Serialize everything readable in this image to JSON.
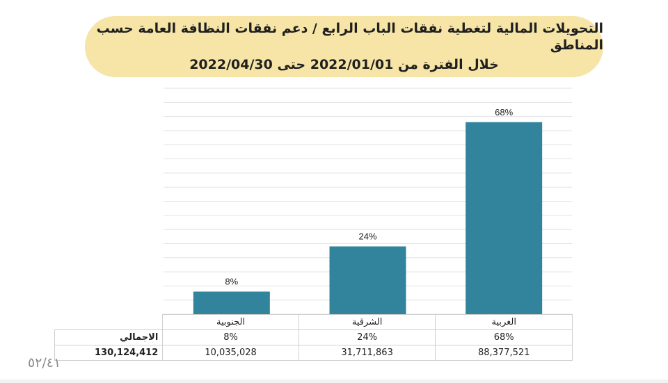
{
  "title": {
    "line1": "التحويلات المالية لتغطية نفقات الباب الرابع / دعم نفقات النظافة العامة حسب المناطق",
    "line2": "خلال الفترة من 2022/01/01  حتى 2022/04/30"
  },
  "chart_data": {
    "type": "bar",
    "categories": [
      "الجنوبية",
      "الشرقية",
      "الغربية"
    ],
    "values": [
      8,
      24,
      68
    ],
    "data_labels": [
      "8%",
      "24%",
      "68%"
    ],
    "ylim": [
      0,
      80
    ],
    "grid": true,
    "bar_color": "#31849b"
  },
  "table": {
    "categories": [
      "الجنوبية",
      "الشرقية",
      "الغربية"
    ],
    "percent_label": "الاجمالي",
    "percents": [
      "8%",
      "24%",
      "68%"
    ],
    "amounts": [
      "10,035,028",
      "31,711,863",
      "88,377,521"
    ],
    "total": "130,124,412"
  },
  "page_number": "٥٢/٤١"
}
